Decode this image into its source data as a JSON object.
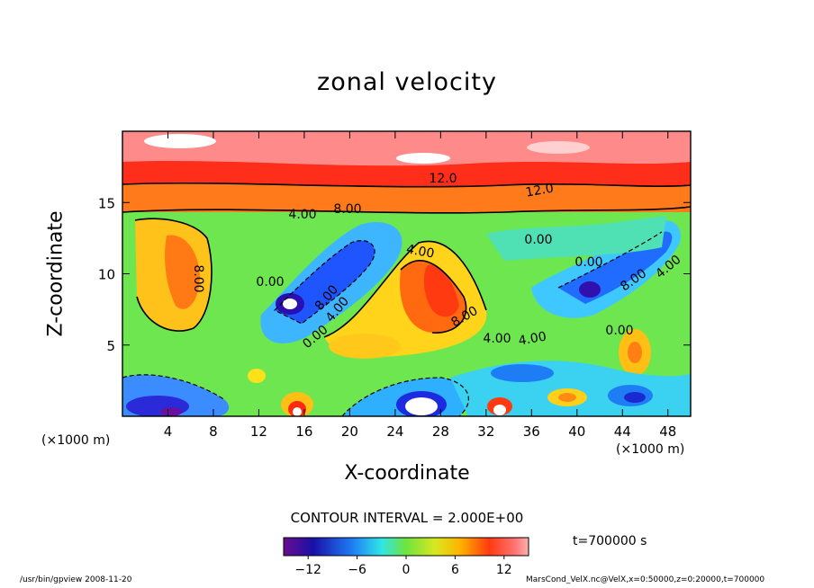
{
  "chart_data": {
    "type": "heatmap",
    "title": "zonal velocity",
    "xlabel": "X-coordinate",
    "ylabel": "Z-coordinate",
    "x_unit": "(×1000 m)",
    "xlim": [
      0,
      50
    ],
    "ylim": [
      0,
      20
    ],
    "x_ticks": [
      4,
      8,
      12,
      16,
      20,
      24,
      28,
      32,
      36,
      40,
      44,
      48
    ],
    "y_ticks": [
      5,
      10,
      15
    ],
    "contour_labels": [
      "12.0",
      "12.0",
      "4.00",
      "8.00",
      "4.00",
      "0.00",
      "8.00",
      "0.00",
      "4.00",
      "8.00",
      "0.00",
      "4.00",
      "0.00",
      "4.00",
      "8.00",
      "8.00",
      "4.00",
      "0.00"
    ],
    "colorbar": {
      "range": [
        -15,
        15
      ],
      "ticks": [
        -12,
        -6,
        0,
        6,
        12
      ],
      "tick_labels": [
        "−12",
        "−6",
        "0",
        "6",
        "12"
      ]
    },
    "contour_interval": "CONTOUR INTERVAL = 2.000E+00",
    "time": "t=700000 s"
  },
  "footer": {
    "left": "/usr/bin/gpview   2008-11-20",
    "right": "MarsCond_VelX.nc@VelX,x=0:50000,z=0:20000,t=700000"
  }
}
